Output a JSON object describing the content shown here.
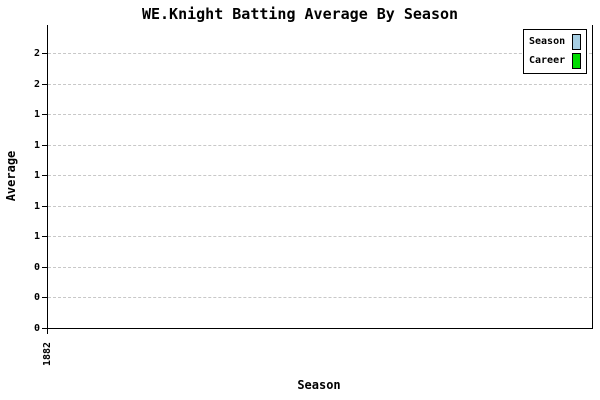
{
  "chart": {
    "title": "WE.Knight Batting Average By Season",
    "x_axis_label": "Season",
    "y_axis_label": "Average",
    "x_tick_labels": [
      "1882"
    ],
    "y_tick_labels_top_to_bottom": [
      "2",
      "2",
      "1",
      "1",
      "1",
      "1",
      "1",
      "0",
      "0",
      "0"
    ],
    "legend": {
      "items": [
        {
          "label": "Season",
          "color": "#A6CEE3"
        },
        {
          "label": "Career",
          "color": "#00DC00"
        }
      ]
    },
    "colors": {
      "season_series": "#A6CEE3",
      "career_series": "#00DC00",
      "gridline": "#C8C8C8",
      "axis": "#000000",
      "background": "#FFFFFF",
      "text": "#000000"
    }
  },
  "chart_data": {
    "type": "bar",
    "title": "WE.Knight Batting Average By Season",
    "xlabel": "Season",
    "ylabel": "Average",
    "categories": [
      "1882"
    ],
    "series": [
      {
        "name": "Season",
        "color": "#A6CEE3",
        "values": [
          0
        ]
      },
      {
        "name": "Career",
        "color": "#00DC00",
        "values": [
          0
        ]
      }
    ],
    "ylim": [
      0,
      2.0
    ],
    "y_tick_values_top_to_bottom": [
      1.8,
      1.6,
      1.4,
      1.2,
      1.0,
      0.8,
      0.6,
      0.4,
      0.2,
      0
    ],
    "y_tick_labels_rendered_top_to_bottom": [
      "2",
      "2",
      "1",
      "1",
      "1",
      "1",
      "1",
      "0",
      "0",
      "0"
    ],
    "grid": true,
    "grid_style": "dashed-horizontal",
    "legend_position": "top-right",
    "bars_visible": false
  }
}
